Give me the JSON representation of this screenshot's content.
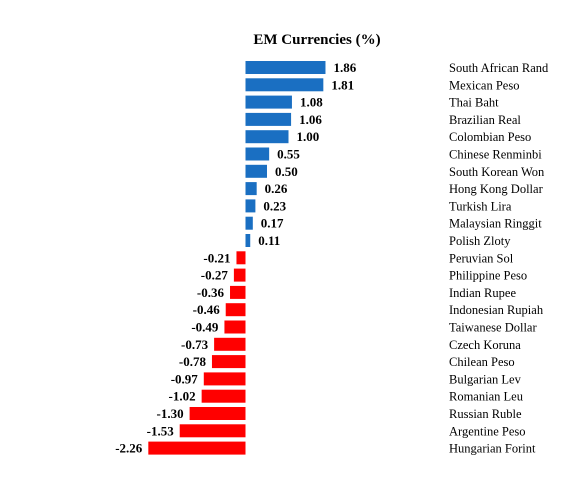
{
  "chart_data": {
    "type": "bar",
    "orientation": "horizontal",
    "title": "EM Currencies (%)",
    "xlabel": "",
    "ylabel": "",
    "categories": [
      "South African Rand",
      "Mexican Peso",
      "Thai Baht",
      "Brazilian Real",
      "Colombian Peso",
      "Chinese Renminbi",
      "South Korean Won",
      "Hong Kong Dollar",
      "Turkish Lira",
      "Malaysian Ringgit",
      "Polish Zloty",
      "Peruvian Sol",
      "Philippine Peso",
      "Indian Rupee",
      "Indonesian Rupiah",
      "Taiwanese Dollar",
      "Czech Koruna",
      "Chilean Peso",
      "Bulgarian Lev",
      "Romanian Leu",
      "Russian Ruble",
      "Argentine Peso",
      "Hungarian Forint"
    ],
    "values": [
      1.86,
      1.81,
      1.08,
      1.06,
      1.0,
      0.55,
      0.5,
      0.26,
      0.23,
      0.17,
      0.11,
      -0.21,
      -0.27,
      -0.36,
      -0.46,
      -0.49,
      -0.73,
      -0.78,
      -0.97,
      -1.02,
      -1.3,
      -1.53,
      -2.26
    ],
    "value_labels": [
      "1.86",
      "1.81",
      "1.08",
      "1.06",
      "1.00",
      "0.55",
      "0.50",
      "0.26",
      "0.23",
      "0.17",
      "0.11",
      "-0.21",
      "-0.27",
      "-0.36",
      "-0.46",
      "-0.49",
      "-0.73",
      "-0.78",
      "-0.97",
      "-1.02",
      "-1.30",
      "-1.53",
      "-2.26"
    ],
    "xlim": [
      -2.26,
      1.86
    ],
    "grid": false,
    "legend": "none",
    "colors": {
      "positive": "#1a6fc2",
      "negative": "#ff0000"
    }
  }
}
